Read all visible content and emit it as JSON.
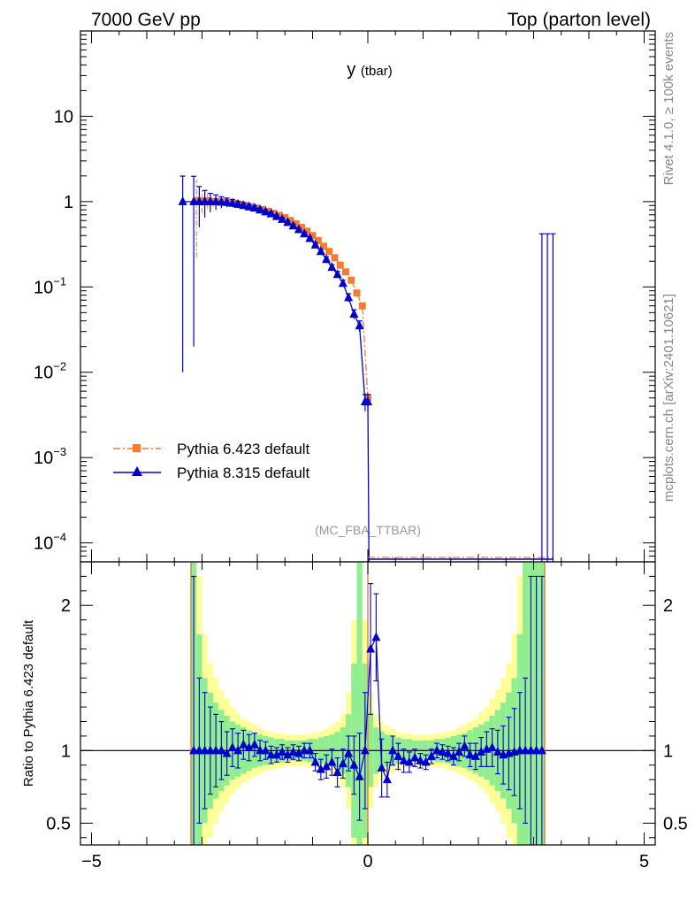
{
  "header": {
    "energy_label": "7000 GeV pp",
    "process_label": "Top (parton level)"
  },
  "side_labels": {
    "rivet": "Rivet 4.1.0, ≥ 100k events",
    "mcplots": "mcplots.cern.ch [arXiv:2401.10621]"
  },
  "colors": {
    "pythia6": "#f47c30",
    "pythia8": "#0000cc",
    "band_inner": "#90ee90",
    "band_outer": "#ffff99"
  },
  "chart_data": [
    {
      "type": "line",
      "title": "y",
      "title_sub": "(tbar)",
      "analysis_tag": "(MC_FBA_TTBAR)",
      "xlabel": "",
      "ylabel": "",
      "yscale": "log",
      "xlim": [
        -5.2,
        5.2
      ],
      "ylim": [
        6e-05,
        100
      ],
      "x_ticks": [
        -5,
        0,
        5
      ],
      "x_tick_labels": [
        "−5",
        "0",
        "5"
      ],
      "y_ticks": [
        0.0001,
        0.001,
        0.01,
        0.1,
        1,
        10
      ],
      "y_tick_labels": [
        {
          "base": "10",
          "exp": "−4"
        },
        {
          "base": "10",
          "exp": "−3"
        },
        {
          "base": "10",
          "exp": "−2"
        },
        {
          "base": "10",
          "exp": "−1"
        },
        {
          "base": "1",
          "exp": ""
        },
        {
          "base": "10",
          "exp": ""
        }
      ],
      "legend_position": "bottom-left",
      "series": [
        {
          "name": "Pythia 6.423 default",
          "style": "dash-dot, square markers",
          "x": [
            -3.1,
            -3.0,
            -2.9,
            -2.8,
            -2.7,
            -2.6,
            -2.5,
            -2.4,
            -2.3,
            -2.2,
            -2.1,
            -2.0,
            -1.9,
            -1.8,
            -1.7,
            -1.6,
            -1.5,
            -1.4,
            -1.3,
            -1.2,
            -1.1,
            -1.0,
            -0.9,
            -0.8,
            -0.7,
            -0.6,
            -0.5,
            -0.4,
            -0.3,
            -0.2,
            -0.1,
            0.0
          ],
          "y": [
            1.02,
            1.03,
            1.02,
            1.01,
            1.0,
            0.99,
            0.97,
            0.95,
            0.93,
            0.9,
            0.87,
            0.84,
            0.81,
            0.77,
            0.73,
            0.69,
            0.65,
            0.6,
            0.55,
            0.5,
            0.45,
            0.4,
            0.35,
            0.3,
            0.26,
            0.22,
            0.18,
            0.15,
            0.12,
            0.085,
            0.06,
            0.005
          ],
          "yerr": [
            0.8,
            0.3,
            0.2,
            0.15,
            0.12,
            0.1,
            0.08,
            0.07,
            0.06,
            0.05,
            0.04,
            0.04,
            0.035,
            0.03,
            0.03,
            0.025,
            0.025,
            0.02,
            0.02,
            0.02,
            0.02,
            0.015,
            0.015,
            0.015,
            0.012,
            0.012,
            0.01,
            0.01,
            0.01,
            0.008,
            0.006,
            0.001
          ]
        },
        {
          "name": "Pythia 8.315 default",
          "style": "solid, triangle markers",
          "x": [
            -3.35,
            -3.15,
            -3.05,
            -2.95,
            -2.85,
            -2.75,
            -2.65,
            -2.55,
            -2.45,
            -2.35,
            -2.25,
            -2.15,
            -2.05,
            -1.95,
            -1.85,
            -1.75,
            -1.65,
            -1.55,
            -1.45,
            -1.35,
            -1.25,
            -1.15,
            -1.05,
            -0.95,
            -0.85,
            -0.75,
            -0.65,
            -0.55,
            -0.45,
            -0.35,
            -0.25,
            -0.15,
            -0.05,
            0.0
          ],
          "y": [
            1.0,
            1.0,
            1.0,
            1.0,
            1.0,
            1.0,
            0.99,
            0.98,
            0.96,
            0.93,
            0.9,
            0.87,
            0.84,
            0.8,
            0.76,
            0.72,
            0.67,
            0.62,
            0.57,
            0.52,
            0.47,
            0.42,
            0.37,
            0.31,
            0.26,
            0.21,
            0.17,
            0.14,
            0.11,
            0.075,
            0.048,
            0.035,
            0.0045,
            0.0045
          ],
          "yerr": [
            0.99,
            0.98,
            0.5,
            0.35,
            0.25,
            0.2,
            0.15,
            0.12,
            0.1,
            0.08,
            0.07,
            0.06,
            0.05,
            0.045,
            0.04,
            0.035,
            0.03,
            0.03,
            0.025,
            0.025,
            0.02,
            0.02,
            0.02,
            0.018,
            0.015,
            0.015,
            0.012,
            0.012,
            0.01,
            0.008,
            0.006,
            0.005,
            0.001,
            0.001
          ]
        }
      ],
      "overflow_bins": [
        {
          "x": 3.15,
          "y_top": 0.42
        },
        {
          "x": 3.25,
          "y_top": 0.42
        },
        {
          "x": 3.35,
          "y_top": 0.42
        }
      ],
      "floor_line_xrange": [
        0.0,
        3.35
      ]
    },
    {
      "type": "line",
      "title": "",
      "xlabel": "",
      "ylabel": "Ratio to Pythia 6.423 default",
      "xlim": [
        -5.2,
        5.2
      ],
      "ylim": [
        0.35,
        2.3
      ],
      "x_ticks": [
        -5,
        0,
        5
      ],
      "x_tick_labels": [
        "−5",
        "0",
        "5"
      ],
      "y_ticks": [
        0.5,
        1,
        2
      ],
      "y_tick_labels": [
        "0.5",
        "1",
        "2"
      ],
      "reference_line": 1,
      "band_edges": [
        -3.2,
        -3.1,
        -3.0,
        -2.9,
        -2.8,
        -2.7,
        -2.6,
        -2.5,
        -2.4,
        -2.3,
        -2.2,
        -2.1,
        -2.0,
        -1.9,
        -1.8,
        -1.7,
        -1.6,
        -1.5,
        -1.4,
        -1.3,
        -1.2,
        -1.1,
        -1.0,
        -0.9,
        -0.8,
        -0.7,
        -0.6,
        -0.5,
        -0.4,
        -0.3,
        -0.2,
        -0.1,
        0.0,
        0.1,
        0.2,
        0.3,
        0.4,
        0.5,
        0.6,
        0.7,
        0.8,
        0.9,
        1.0,
        1.1,
        1.2,
        1.3,
        1.4,
        1.5,
        1.6,
        1.7,
        1.8,
        1.9,
        2.0,
        2.1,
        2.2,
        2.3,
        2.4,
        2.5,
        2.6,
        2.7,
        2.8,
        2.9,
        3.0,
        3.1,
        3.2
      ],
      "band_inner_halfwidth": [
        2.0,
        0.8,
        0.5,
        0.4,
        0.33,
        0.28,
        0.24,
        0.2,
        0.18,
        0.16,
        0.14,
        0.12,
        0.11,
        0.1,
        0.09,
        0.08,
        0.08,
        0.07,
        0.07,
        0.07,
        0.07,
        0.08,
        0.08,
        0.09,
        0.1,
        0.11,
        0.13,
        0.16,
        0.25,
        0.6,
        2.0,
        0.6,
        0.25,
        0.16,
        0.13,
        0.11,
        0.1,
        0.09,
        0.08,
        0.08,
        0.07,
        0.07,
        0.07,
        0.07,
        0.08,
        0.08,
        0.09,
        0.1,
        0.11,
        0.12,
        0.14,
        0.16,
        0.18,
        0.2,
        0.24,
        0.28,
        0.33,
        0.4,
        0.5,
        0.8,
        2.0,
        2.0,
        2.0,
        2.0
      ],
      "band_outer_halfwidth": [
        2.0,
        1.2,
        0.8,
        0.6,
        0.5,
        0.42,
        0.36,
        0.3,
        0.26,
        0.22,
        0.2,
        0.18,
        0.16,
        0.14,
        0.13,
        0.12,
        0.12,
        0.11,
        0.11,
        0.11,
        0.11,
        0.12,
        0.12,
        0.13,
        0.15,
        0.17,
        0.2,
        0.25,
        0.4,
        0.9,
        2.0,
        0.9,
        0.4,
        0.25,
        0.2,
        0.17,
        0.15,
        0.13,
        0.12,
        0.12,
        0.11,
        0.11,
        0.11,
        0.11,
        0.12,
        0.12,
        0.13,
        0.14,
        0.16,
        0.18,
        0.2,
        0.22,
        0.26,
        0.3,
        0.36,
        0.42,
        0.5,
        0.6,
        0.8,
        1.2,
        2.0,
        2.0,
        2.0,
        2.0
      ],
      "series": [
        {
          "name": "Pythia 8.315 default",
          "x": [
            -3.15,
            -3.05,
            -2.95,
            -2.85,
            -2.75,
            -2.65,
            -2.55,
            -2.45,
            -2.35,
            -2.25,
            -2.15,
            -2.05,
            -1.95,
            -1.85,
            -1.75,
            -1.65,
            -1.55,
            -1.45,
            -1.35,
            -1.25,
            -1.15,
            -1.05,
            -0.95,
            -0.85,
            -0.75,
            -0.65,
            -0.55,
            -0.45,
            -0.35,
            -0.25,
            -0.15,
            -0.05,
            0.05,
            0.15,
            0.25,
            0.35,
            0.45,
            0.55,
            0.65,
            0.75,
            0.85,
            0.95,
            1.05,
            1.15,
            1.25,
            1.35,
            1.45,
            1.55,
            1.65,
            1.75,
            1.85,
            1.95,
            2.05,
            2.15,
            2.25,
            2.35,
            2.45,
            2.55,
            2.65,
            2.75,
            2.85,
            2.95,
            3.05,
            3.15
          ],
          "y": [
            1.0,
            1.0,
            1.0,
            1.0,
            1.0,
            1.0,
            0.98,
            1.02,
            1.0,
            1.04,
            1.02,
            1.04,
            1.0,
            1.0,
            0.97,
            0.97,
            0.99,
            0.97,
            0.99,
            0.98,
            1.0,
            1.0,
            0.92,
            0.87,
            0.89,
            0.92,
            0.85,
            0.91,
            0.98,
            0.9,
            0.82,
            1.0,
            1.7,
            1.78,
            0.88,
            0.8,
            1.0,
            0.96,
            0.93,
            0.92,
            0.95,
            0.93,
            0.92,
            0.96,
            1.0,
            0.99,
            0.98,
            0.96,
            0.99,
            1.03,
            0.97,
            0.96,
            0.99,
            1.01,
            1.02,
            0.99,
            0.97,
            0.98,
            0.99,
            1.0,
            1.0,
            1.0,
            1.0,
            1.0
          ],
          "yerr": [
            1.2,
            0.5,
            0.4,
            0.3,
            0.25,
            0.2,
            0.15,
            0.13,
            0.12,
            0.1,
            0.09,
            0.08,
            0.07,
            0.06,
            0.06,
            0.05,
            0.05,
            0.05,
            0.05,
            0.05,
            0.05,
            0.05,
            0.06,
            0.07,
            0.08,
            0.09,
            0.1,
            0.1,
            0.12,
            0.2,
            0.3,
            0.4,
            0.45,
            0.3,
            0.2,
            0.12,
            0.1,
            0.09,
            0.08,
            0.07,
            0.06,
            0.05,
            0.05,
            0.05,
            0.05,
            0.05,
            0.05,
            0.06,
            0.06,
            0.07,
            0.08,
            0.09,
            0.1,
            0.12,
            0.13,
            0.15,
            0.2,
            0.25,
            0.3,
            0.4,
            0.5,
            1.2,
            1.2,
            1.2
          ]
        }
      ]
    }
  ]
}
